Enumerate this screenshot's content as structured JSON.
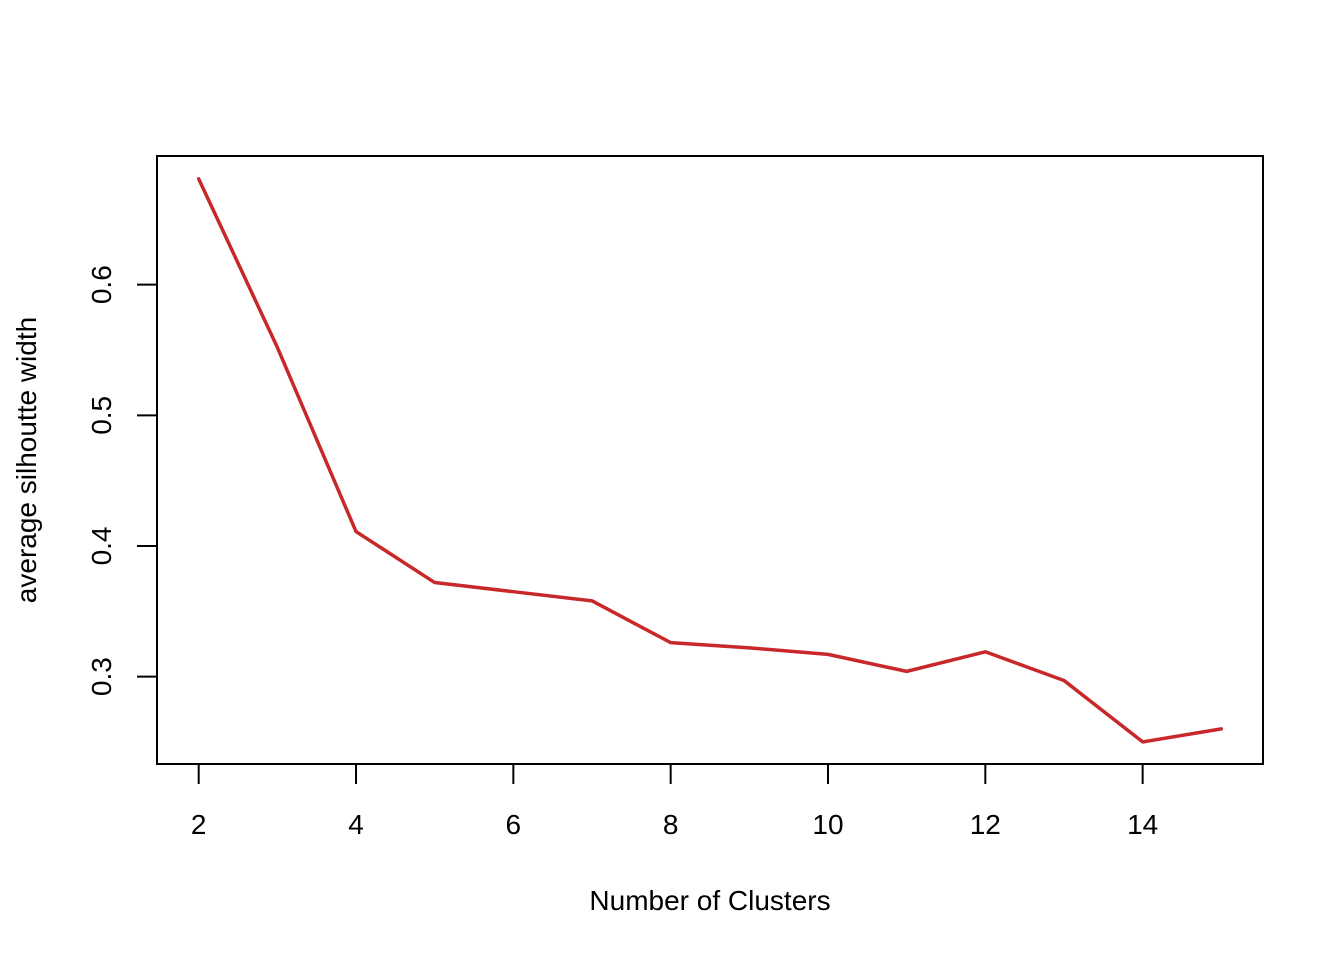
{
  "chart_data": {
    "type": "line",
    "title": "",
    "xlabel": "Number of Clusters",
    "ylabel": "average silhoutte width",
    "xlim": [
      1.47,
      15.53
    ],
    "ylim": [
      0.2331,
      0.6985
    ],
    "x_ticks": [
      2,
      4,
      6,
      8,
      10,
      12,
      14
    ],
    "y_ticks": [
      0.3,
      0.4,
      0.5,
      0.6
    ],
    "grid": false,
    "legend": "none",
    "line_color": "#C8282A",
    "series": [
      {
        "x": [
          2,
          3,
          4,
          5,
          6,
          7,
          8,
          9,
          10,
          11,
          12,
          13,
          14,
          15
        ],
        "y": [
          0.681,
          0.552,
          0.411,
          0.372,
          0.365,
          0.358,
          0.326,
          0.322,
          0.317,
          0.304,
          0.319,
          0.297,
          0.25,
          0.26
        ]
      }
    ]
  }
}
